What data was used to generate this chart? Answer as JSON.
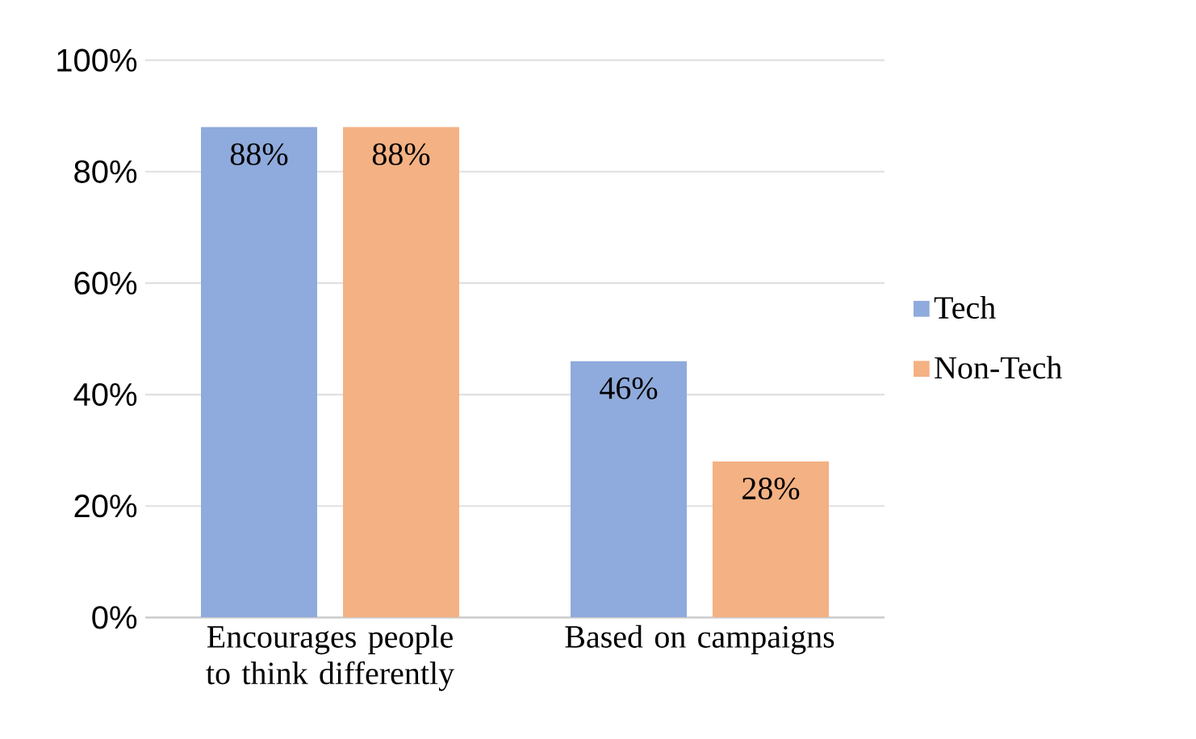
{
  "chart_data": {
    "type": "bar",
    "categories": [
      "Encourages people to think differently",
      "Based on campaigns"
    ],
    "series": [
      {
        "name": "Tech",
        "color": "#8faadc",
        "values": [
          88,
          46
        ],
        "value_labels": [
          "88%",
          "46%"
        ]
      },
      {
        "name": "Non-Tech",
        "color": "#f4b183",
        "values": [
          88,
          28
        ],
        "value_labels": [
          "88%",
          "28%"
        ]
      }
    ],
    "ylim": [
      0,
      100
    ],
    "yticks": [
      {
        "value": 0,
        "label": "0%"
      },
      {
        "value": 20,
        "label": "20%"
      },
      {
        "value": 40,
        "label": "40%"
      },
      {
        "value": 60,
        "label": "60%"
      },
      {
        "value": 80,
        "label": "80%"
      },
      {
        "value": 100,
        "label": "100%"
      }
    ],
    "grid": "y",
    "legend": "right"
  }
}
